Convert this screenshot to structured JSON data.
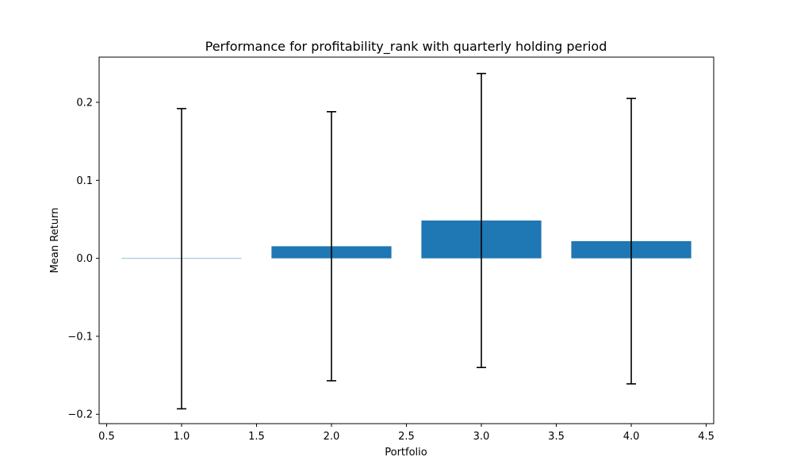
{
  "chart_data": {
    "type": "bar",
    "title": "Performance for profitability_rank with quarterly holding period",
    "xlabel": "Portfolio",
    "ylabel": "Mean Return",
    "xlim": [
      0.45,
      4.55
    ],
    "ylim": [
      -0.212,
      0.258
    ],
    "bar_width": 0.8,
    "grid": false,
    "legend": null,
    "bar_color": "#1f77b4",
    "errorbar_color": "#000000",
    "x_ticks": [
      0.5,
      1.0,
      1.5,
      2.0,
      2.5,
      3.0,
      3.5,
      4.0,
      4.5
    ],
    "x_tick_labels": [
      "0.5",
      "1.0",
      "1.5",
      "2.0",
      "2.5",
      "3.0",
      "3.5",
      "4.0",
      "4.5"
    ],
    "y_ticks": [
      -0.2,
      -0.1,
      0.0,
      0.1,
      0.2
    ],
    "y_tick_labels": [
      "−0.2",
      "−0.1",
      "0.0",
      "0.1",
      "0.2"
    ],
    "x": [
      1,
      2,
      3,
      4
    ],
    "values": [
      -0.0005,
      0.0155,
      0.0485,
      0.022
    ],
    "error": [
      0.1925,
      0.1725,
      0.1885,
      0.183
    ]
  }
}
